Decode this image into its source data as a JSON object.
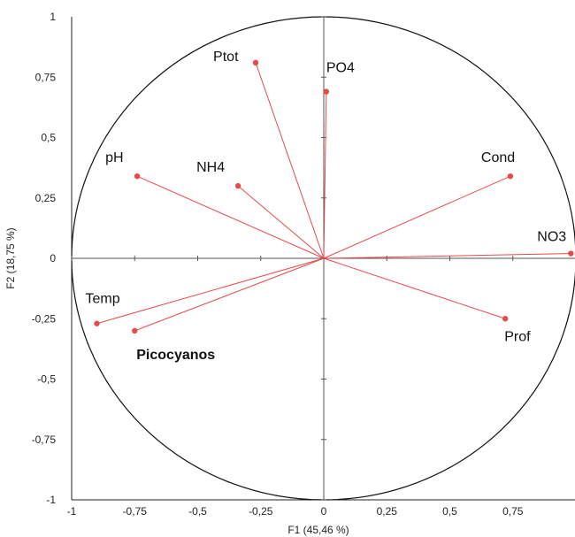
{
  "chart_data": {
    "type": "scatter",
    "subtype": "pca-correlation-circle",
    "xlabel": "F1 (45,46 %)",
    "ylabel": "F2 (18,75 %)",
    "xlim": [
      -1,
      1
    ],
    "ylim": [
      -1,
      1
    ],
    "x_ticks": [
      "-1",
      "-0,75",
      "-0,5",
      "-0,25",
      "0",
      "0,25",
      "0,5",
      "0,75"
    ],
    "y_ticks": [
      "1",
      "0,75",
      "0,5",
      "0,25",
      "0",
      "-0,25",
      "-0,5",
      "-0,75",
      "-1"
    ],
    "grid": false,
    "legend": "none",
    "vector_color": "#e84a4a",
    "highlight_color": "#e0211d",
    "points": [
      {
        "label": "Ptot",
        "x": -0.27,
        "y": 0.81
      },
      {
        "label": "PO4",
        "x": 0.01,
        "y": 0.69
      },
      {
        "label": "pH",
        "x": -0.74,
        "y": 0.34
      },
      {
        "label": "NH4",
        "x": -0.34,
        "y": 0.3
      },
      {
        "label": "Cond",
        "x": 0.74,
        "y": 0.34
      },
      {
        "label": "NO3",
        "x": 0.98,
        "y": 0.02
      },
      {
        "label": "Temp",
        "x": -0.9,
        "y": -0.27
      },
      {
        "label": "Picocyanos",
        "x": -0.75,
        "y": -0.3,
        "highlight": true
      },
      {
        "label": "Prof",
        "x": 0.72,
        "y": -0.25
      }
    ]
  }
}
